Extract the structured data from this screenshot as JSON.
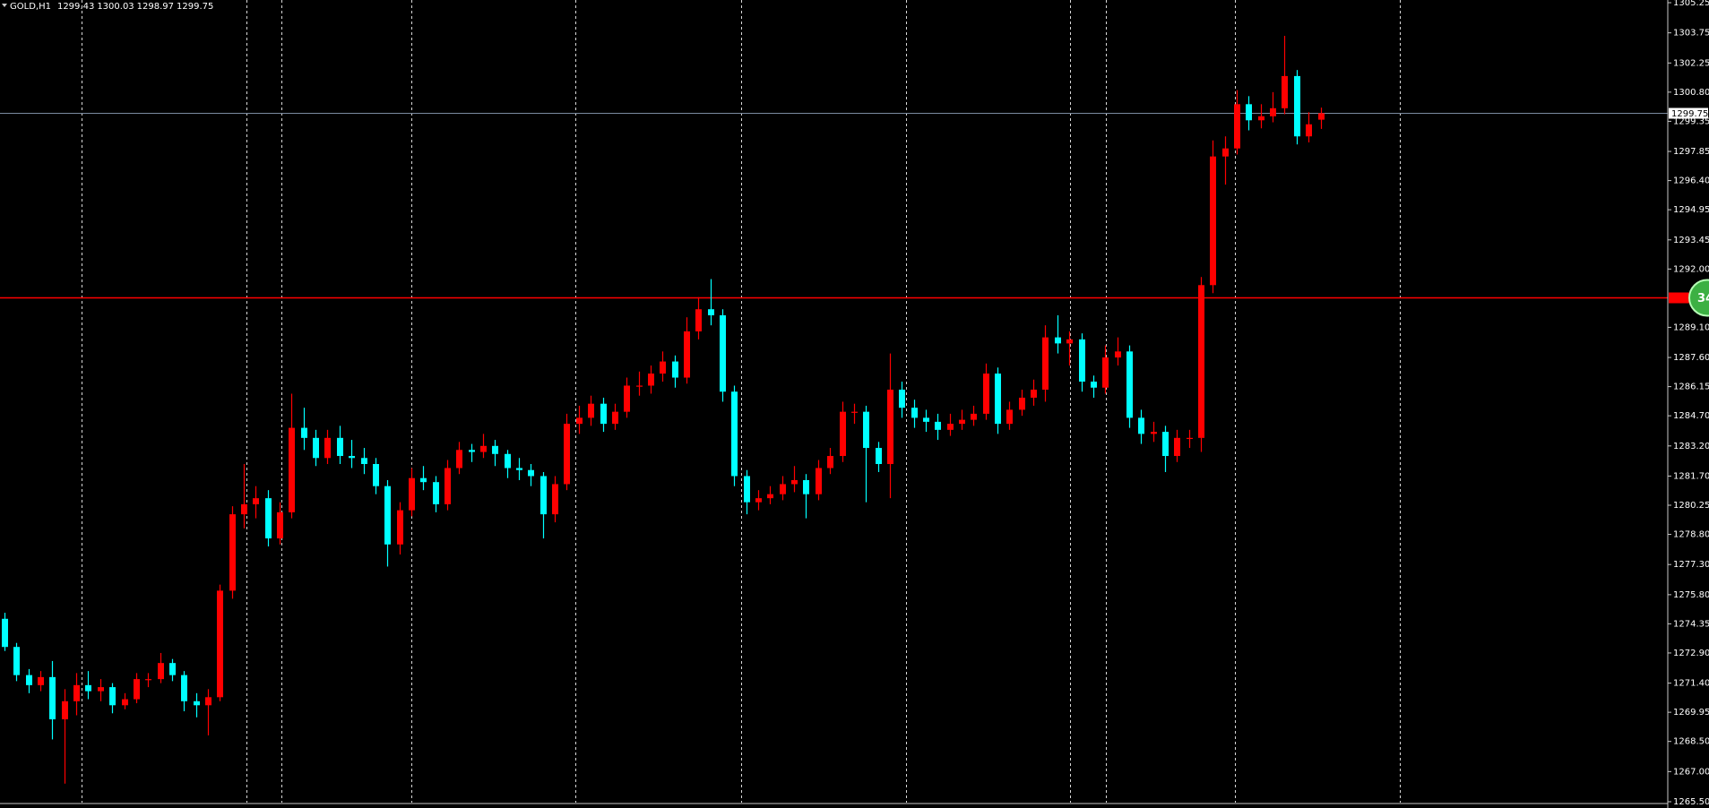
{
  "chart_data": {
    "type": "candlestick",
    "title": "GOLD,H1",
    "bull_color": "#ff0000",
    "bear_color": "#00ffff",
    "ylim": [
      1265.5,
      1305.25
    ],
    "yticks": [
      1305.25,
      1303.75,
      1302.25,
      {
        "value": 1300.8,
        "label": "1300.80"
      },
      1299.35,
      1297.85,
      {
        "value": 1296.4,
        "label": "1296.40"
      },
      1294.95,
      1293.45,
      {
        "value": 1292,
        "label": "1292.00"
      },
      {
        "value": 1289.1,
        "label": "1289.10"
      },
      {
        "value": 1287.6,
        "label": "1287.60"
      },
      1286.15,
      {
        "value": 1284.7,
        "label": "1284.70"
      },
      {
        "value": 1283.2,
        "label": "1283.20"
      },
      {
        "value": 1281.7,
        "label": "1281.70"
      },
      1280.25,
      {
        "value": 1278.8,
        "label": "1278.80"
      },
      {
        "value": 1277.3,
        "label": "1277.30"
      },
      {
        "value": 1275.8,
        "label": "1275.80"
      },
      1274.35,
      {
        "value": 1272.9,
        "label": "1272.90"
      },
      {
        "value": 1271.4,
        "label": "1271.40"
      },
      1269.95,
      {
        "value": 1268.5,
        "label": "1268.50"
      },
      {
        "value": 1267,
        "label": "1267.00"
      },
      {
        "value": 1265.5,
        "label": "1265.50"
      }
    ],
    "last_price": 1299.75,
    "level_line": 1290.6,
    "badge": "34",
    "ohlc": [
      [
        1274.6,
        1274.9,
        1273.0,
        1273.2
      ],
      [
        1273.2,
        1273.4,
        1271.5,
        1271.8
      ],
      [
        1271.8,
        1272.1,
        1270.9,
        1271.3
      ],
      [
        1271.3,
        1272.0,
        1271.0,
        1271.7
      ],
      [
        1271.7,
        1272.5,
        1268.6,
        1269.6
      ],
      [
        1269.6,
        1271.1,
        1266.4,
        1270.5
      ],
      [
        1270.5,
        1271.9,
        1269.8,
        1271.3
      ],
      [
        1271.3,
        1272.0,
        1270.6,
        1271.0
      ],
      [
        1271.0,
        1271.6,
        1270.5,
        1271.2
      ],
      [
        1271.2,
        1271.4,
        1269.9,
        1270.3
      ],
      [
        1270.3,
        1270.9,
        1270.1,
        1270.6
      ],
      [
        1270.6,
        1271.9,
        1270.4,
        1271.6
      ],
      [
        1271.6,
        1271.9,
        1271.2,
        1271.6
      ],
      [
        1271.6,
        1272.9,
        1271.4,
        1272.4
      ],
      [
        1272.4,
        1272.6,
        1271.5,
        1271.8
      ],
      [
        1271.8,
        1272.0,
        1270.0,
        1270.5
      ],
      [
        1270.5,
        1270.9,
        1269.7,
        1270.3
      ],
      [
        1270.3,
        1271.1,
        1268.8,
        1270.7
      ],
      [
        1270.7,
        1276.3,
        1270.5,
        1276.0
      ],
      [
        1276.0,
        1280.2,
        1275.6,
        1279.8
      ],
      [
        1279.8,
        1282.3,
        1279.1,
        1280.3
      ],
      [
        1280.3,
        1281.2,
        1279.6,
        1280.6
      ],
      [
        1280.6,
        1281.0,
        1278.2,
        1278.6
      ],
      [
        1278.6,
        1280.4,
        1278.3,
        1279.9
      ],
      [
        1279.9,
        1285.8,
        1279.6,
        1284.1
      ],
      [
        1284.1,
        1285.1,
        1283.0,
        1283.6
      ],
      [
        1283.6,
        1284.0,
        1282.2,
        1282.6
      ],
      [
        1282.6,
        1284.0,
        1282.3,
        1283.6
      ],
      [
        1283.6,
        1284.2,
        1282.3,
        1282.7
      ],
      [
        1282.7,
        1283.5,
        1282.1,
        1282.6
      ],
      [
        1282.6,
        1283.1,
        1281.8,
        1282.3
      ],
      [
        1282.3,
        1282.6,
        1280.8,
        1281.2
      ],
      [
        1281.2,
        1281.5,
        1277.2,
        1278.3
      ],
      [
        1278.3,
        1280.4,
        1277.8,
        1280.0
      ],
      [
        1280.0,
        1282.1,
        1279.7,
        1281.6
      ],
      [
        1281.6,
        1282.2,
        1281.0,
        1281.4
      ],
      [
        1281.4,
        1281.7,
        1279.9,
        1280.3
      ],
      [
        1280.3,
        1282.5,
        1280.0,
        1282.1
      ],
      [
        1282.1,
        1283.4,
        1281.8,
        1283.0
      ],
      [
        1283.0,
        1283.3,
        1282.4,
        1282.9
      ],
      [
        1282.9,
        1283.8,
        1282.6,
        1283.2
      ],
      [
        1283.2,
        1283.5,
        1282.2,
        1282.8
      ],
      [
        1282.8,
        1283.0,
        1281.6,
        1282.1
      ],
      [
        1282.1,
        1282.6,
        1281.5,
        1282.0
      ],
      [
        1282.0,
        1282.3,
        1281.2,
        1281.7
      ],
      [
        1281.7,
        1281.9,
        1278.6,
        1279.8
      ],
      [
        1279.8,
        1281.7,
        1279.4,
        1281.3
      ],
      [
        1281.3,
        1284.8,
        1281.0,
        1284.3
      ],
      [
        1284.3,
        1285.2,
        1283.8,
        1284.6
      ],
      [
        1284.6,
        1285.7,
        1284.2,
        1285.3
      ],
      [
        1285.3,
        1285.6,
        1283.9,
        1284.3
      ],
      [
        1284.3,
        1285.3,
        1284.0,
        1284.9
      ],
      [
        1284.9,
        1286.6,
        1284.6,
        1286.2
      ],
      [
        1286.2,
        1286.9,
        1285.7,
        1286.2
      ],
      [
        1286.2,
        1287.2,
        1285.8,
        1286.8
      ],
      [
        1286.8,
        1287.9,
        1286.4,
        1287.4
      ],
      [
        1287.4,
        1287.7,
        1286.1,
        1286.6
      ],
      [
        1286.6,
        1289.6,
        1286.3,
        1288.9
      ],
      [
        1288.9,
        1290.6,
        1288.5,
        1290.0
      ],
      [
        1290.0,
        1291.5,
        1289.2,
        1289.7
      ],
      [
        1289.7,
        1290.0,
        1285.4,
        1285.9
      ],
      [
        1285.9,
        1286.2,
        1281.2,
        1281.7
      ],
      [
        1281.7,
        1282.0,
        1279.8,
        1280.4
      ],
      [
        1280.4,
        1281.0,
        1280.0,
        1280.6
      ],
      [
        1280.6,
        1281.2,
        1280.3,
        1280.8
      ],
      [
        1280.8,
        1281.7,
        1280.5,
        1281.3
      ],
      [
        1281.3,
        1282.2,
        1280.9,
        1281.5
      ],
      [
        1281.5,
        1281.8,
        1279.6,
        1280.8
      ],
      [
        1280.8,
        1282.5,
        1280.5,
        1282.1
      ],
      [
        1282.1,
        1283.1,
        1281.8,
        1282.7
      ],
      [
        1282.7,
        1285.4,
        1282.4,
        1284.9
      ],
      [
        1284.9,
        1285.3,
        1284.3,
        1284.9
      ],
      [
        1284.9,
        1285.2,
        1280.4,
        1283.1
      ],
      [
        1283.1,
        1283.4,
        1281.9,
        1282.3
      ],
      [
        1282.3,
        1287.8,
        1280.6,
        1286.0
      ],
      [
        1286.0,
        1286.4,
        1284.6,
        1285.1
      ],
      [
        1285.1,
        1285.5,
        1284.1,
        1284.6
      ],
      [
        1284.6,
        1285.0,
        1283.9,
        1284.4
      ],
      [
        1284.4,
        1284.8,
        1283.5,
        1284.0
      ],
      [
        1284.0,
        1284.8,
        1283.7,
        1284.3
      ],
      [
        1284.3,
        1285.0,
        1284.0,
        1284.5
      ],
      [
        1284.5,
        1285.2,
        1284.2,
        1284.8
      ],
      [
        1284.8,
        1287.3,
        1284.5,
        1286.8
      ],
      [
        1286.8,
        1287.1,
        1283.8,
        1284.3
      ],
      [
        1284.3,
        1285.4,
        1284.0,
        1285.0
      ],
      [
        1285.0,
        1286.0,
        1284.7,
        1285.6
      ],
      [
        1285.6,
        1286.5,
        1285.2,
        1286.0
      ],
      [
        1286.0,
        1289.2,
        1285.4,
        1288.6
      ],
      [
        1288.6,
        1289.7,
        1287.8,
        1288.3
      ],
      [
        1288.3,
        1288.9,
        1287.2,
        1288.5
      ],
      [
        1288.5,
        1288.8,
        1285.9,
        1286.4
      ],
      [
        1286.4,
        1286.7,
        1285.6,
        1286.1
      ],
      [
        1286.1,
        1288.2,
        1285.8,
        1287.6
      ],
      [
        1287.6,
        1288.6,
        1287.2,
        1287.9
      ],
      [
        1287.9,
        1288.2,
        1284.1,
        1284.6
      ],
      [
        1284.6,
        1285.0,
        1283.3,
        1283.8
      ],
      [
        1283.8,
        1284.4,
        1283.4,
        1283.9
      ],
      [
        1283.9,
        1284.2,
        1281.9,
        1282.7
      ],
      [
        1282.7,
        1284.0,
        1282.4,
        1283.6
      ],
      [
        1283.6,
        1284.0,
        1283.1,
        1283.6
      ],
      [
        1283.6,
        1291.6,
        1282.9,
        1291.2
      ],
      [
        1291.2,
        1298.4,
        1290.8,
        1297.6
      ],
      [
        1297.6,
        1298.6,
        1296.2,
        1298.0
      ],
      [
        1298.0,
        1300.9,
        1297.7,
        1300.2
      ],
      [
        1300.2,
        1300.6,
        1298.9,
        1299.4
      ],
      [
        1299.4,
        1300.2,
        1299.0,
        1299.6
      ],
      [
        1299.6,
        1300.8,
        1299.3,
        1300.0
      ],
      [
        1300.0,
        1303.6,
        1299.7,
        1301.6
      ],
      [
        1301.6,
        1301.9,
        1298.2,
        1298.6
      ],
      [
        1298.6,
        1299.8,
        1298.3,
        1299.2
      ],
      [
        1299.43,
        1300.03,
        1298.97,
        1299.75
      ]
    ]
  }
}
